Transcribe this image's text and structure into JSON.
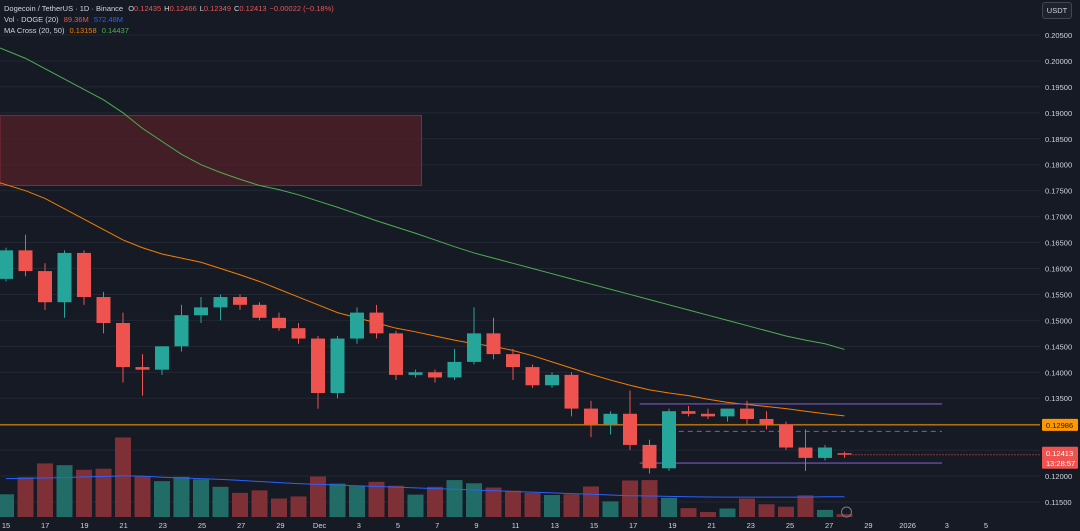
{
  "header": {
    "symbol_line": "Dogecoin / TetherUS · 1D · Binance",
    "ohlc": [
      {
        "k": "O",
        "v": "0.12435"
      },
      {
        "k": "H",
        "v": "0.12466"
      },
      {
        "k": "L",
        "v": "0.12349"
      },
      {
        "k": "C",
        "v": "0.12413"
      },
      {
        "k": "",
        "v": "−0.00022 (−0.18%)"
      }
    ],
    "volume_label": "Vol · DOGE (20)",
    "volume_value": "89.36M",
    "volume_ma_value": "572.48M",
    "volume_right": "Vol89.36M −0.00022 (−0.18%)",
    "ma_label": "MA Cross (20, 50)",
    "ma20_value": "0.13158",
    "ma50_value": "0.14437"
  },
  "quote_currency": "USDT",
  "colors": {
    "background": "#161a25",
    "up": "#26a69a",
    "down": "#ef5350",
    "ma20": "#f57c00",
    "ma50": "#4caf50",
    "volume_ma": "#2962ff",
    "horizontal_level": "#ff9800",
    "range_lines": "#7e57c2",
    "zone_fill": "#4a1f28",
    "text": "#d1d4dc",
    "price_tag_bg": "#ef5350"
  },
  "chart_data": {
    "type": "candlestick",
    "title": "Dogecoin / TetherUS · 1D · Binance",
    "ylim": [
      0.11,
      0.21
    ],
    "y_ticks": [
      "0.11500",
      "0.12000",
      "0.12500",
      "0.13000",
      "0.13500",
      "0.14000",
      "0.14500",
      "0.15000",
      "0.15500",
      "0.16000",
      "0.16500",
      "0.17000",
      "0.17500",
      "0.18000",
      "0.18500",
      "0.19000",
      "0.19500",
      "0.20000",
      "0.20500"
    ],
    "x_ticks": [
      "15",
      "17",
      "19",
      "21",
      "23",
      "25",
      "27",
      "29",
      "Dec",
      "3",
      "5",
      "7",
      "9",
      "11",
      "13",
      "15",
      "17",
      "19",
      "21",
      "23",
      "25",
      "27",
      "29",
      "2026",
      "3",
      "5"
    ],
    "candles": [
      {
        "o": 0.158,
        "h": 0.164,
        "l": 0.1575,
        "c": 0.1635
      },
      {
        "o": 0.1635,
        "h": 0.1665,
        "l": 0.1585,
        "c": 0.1595
      },
      {
        "o": 0.1595,
        "h": 0.161,
        "l": 0.152,
        "c": 0.1535
      },
      {
        "o": 0.1535,
        "h": 0.1635,
        "l": 0.1505,
        "c": 0.163
      },
      {
        "o": 0.163,
        "h": 0.1635,
        "l": 0.153,
        "c": 0.1545
      },
      {
        "o": 0.1545,
        "h": 0.1555,
        "l": 0.1475,
        "c": 0.1495
      },
      {
        "o": 0.1495,
        "h": 0.1515,
        "l": 0.138,
        "c": 0.141
      },
      {
        "o": 0.141,
        "h": 0.1435,
        "l": 0.1355,
        "c": 0.1405
      },
      {
        "o": 0.1405,
        "h": 0.145,
        "l": 0.1395,
        "c": 0.145
      },
      {
        "o": 0.145,
        "h": 0.153,
        "l": 0.144,
        "c": 0.151
      },
      {
        "o": 0.151,
        "h": 0.1545,
        "l": 0.1495,
        "c": 0.1525
      },
      {
        "o": 0.1525,
        "h": 0.155,
        "l": 0.15,
        "c": 0.1545
      },
      {
        "o": 0.1545,
        "h": 0.155,
        "l": 0.152,
        "c": 0.153
      },
      {
        "o": 0.153,
        "h": 0.1535,
        "l": 0.15,
        "c": 0.1505
      },
      {
        "o": 0.1505,
        "h": 0.1515,
        "l": 0.148,
        "c": 0.1485
      },
      {
        "o": 0.1485,
        "h": 0.1495,
        "l": 0.1455,
        "c": 0.1465
      },
      {
        "o": 0.1465,
        "h": 0.147,
        "l": 0.133,
        "c": 0.136
      },
      {
        "o": 0.136,
        "h": 0.147,
        "l": 0.135,
        "c": 0.1465
      },
      {
        "o": 0.1465,
        "h": 0.1525,
        "l": 0.1455,
        "c": 0.1515
      },
      {
        "o": 0.1515,
        "h": 0.153,
        "l": 0.1465,
        "c": 0.1475
      },
      {
        "o": 0.1475,
        "h": 0.148,
        "l": 0.1385,
        "c": 0.1395
      },
      {
        "o": 0.1395,
        "h": 0.1405,
        "l": 0.139,
        "c": 0.14
      },
      {
        "o": 0.14,
        "h": 0.1405,
        "l": 0.138,
        "c": 0.139
      },
      {
        "o": 0.139,
        "h": 0.1445,
        "l": 0.1385,
        "c": 0.142
      },
      {
        "o": 0.142,
        "h": 0.1525,
        "l": 0.1415,
        "c": 0.1475
      },
      {
        "o": 0.1475,
        "h": 0.1505,
        "l": 0.1425,
        "c": 0.1435
      },
      {
        "o": 0.1435,
        "h": 0.1445,
        "l": 0.1385,
        "c": 0.141
      },
      {
        "o": 0.141,
        "h": 0.1415,
        "l": 0.137,
        "c": 0.1375
      },
      {
        "o": 0.1375,
        "h": 0.14,
        "l": 0.137,
        "c": 0.1395
      },
      {
        "o": 0.1395,
        "h": 0.14,
        "l": 0.1315,
        "c": 0.133
      },
      {
        "o": 0.133,
        "h": 0.1345,
        "l": 0.1275,
        "c": 0.13
      },
      {
        "o": 0.13,
        "h": 0.1325,
        "l": 0.128,
        "c": 0.132
      },
      {
        "o": 0.132,
        "h": 0.1365,
        "l": 0.125,
        "c": 0.126
      },
      {
        "o": 0.126,
        "h": 0.127,
        "l": 0.1205,
        "c": 0.1215
      },
      {
        "o": 0.1215,
        "h": 0.133,
        "l": 0.121,
        "c": 0.1325
      },
      {
        "o": 0.1325,
        "h": 0.1335,
        "l": 0.1315,
        "c": 0.132
      },
      {
        "o": 0.132,
        "h": 0.133,
        "l": 0.131,
        "c": 0.1315
      },
      {
        "o": 0.1315,
        "h": 0.133,
        "l": 0.1305,
        "c": 0.133
      },
      {
        "o": 0.133,
        "h": 0.1345,
        "l": 0.13,
        "c": 0.131
      },
      {
        "o": 0.131,
        "h": 0.1325,
        "l": 0.129,
        "c": 0.13
      },
      {
        "o": 0.13,
        "h": 0.1305,
        "l": 0.125,
        "c": 0.1255
      },
      {
        "o": 0.1255,
        "h": 0.129,
        "l": 0.121,
        "c": 0.1235
      },
      {
        "o": 0.1235,
        "h": 0.126,
        "l": 0.123,
        "c": 0.1255
      },
      {
        "o": 0.1244,
        "h": 0.1247,
        "l": 0.1235,
        "c": 0.1241
      }
    ],
    "volume": {
      "ylim": [
        0,
        2000
      ],
      "values": [
        640,
        1120,
        1510,
        1460,
        1330,
        1360,
        2240,
        1150,
        1010,
        1130,
        1060,
        850,
        680,
        750,
        520,
        580,
        1140,
        940,
        870,
        990,
        880,
        630,
        850,
        1040,
        950,
        830,
        740,
        680,
        620,
        640,
        860,
        440,
        1030,
        1040,
        540,
        250,
        140,
        240,
        520,
        360,
        290,
        610,
        200,
        80
      ],
      "ma": [
        1080,
        1090,
        1100,
        1110,
        1130,
        1140,
        1160,
        1150,
        1120,
        1100,
        1080,
        1060,
        1030,
        1000,
        970,
        940,
        920,
        900,
        880,
        860,
        840,
        820,
        800,
        780,
        760,
        740,
        720,
        700,
        680,
        660,
        640,
        620,
        600,
        590,
        580,
        570,
        565,
        560,
        560,
        560,
        560,
        560,
        570,
        572
      ]
    },
    "ma20": [
      0.1765,
      0.175,
      0.1735,
      0.1715,
      0.1695,
      0.1675,
      0.1655,
      0.164,
      0.1628,
      0.162,
      0.1612,
      0.16,
      0.1588,
      0.1575,
      0.156,
      0.1545,
      0.153,
      0.1515,
      0.1505,
      0.1495,
      0.1485,
      0.1478,
      0.147,
      0.1462,
      0.1455,
      0.145,
      0.1442,
      0.1432,
      0.142,
      0.1408,
      0.1396,
      0.1385,
      0.1375,
      0.1366,
      0.136,
      0.1355,
      0.1348,
      0.1342,
      0.1338,
      0.1334,
      0.133,
      0.1325,
      0.132,
      0.1316
    ],
    "ma50": [
      0.2025,
      0.2005,
      0.1985,
      0.1965,
      0.1945,
      0.1925,
      0.19,
      0.187,
      0.1845,
      0.182,
      0.18,
      0.1785,
      0.1772,
      0.176,
      0.1752,
      0.1742,
      0.173,
      0.1718,
      0.1705,
      0.1692,
      0.168,
      0.1668,
      0.1655,
      0.1642,
      0.163,
      0.162,
      0.161,
      0.16,
      0.159,
      0.158,
      0.157,
      0.156,
      0.155,
      0.154,
      0.153,
      0.152,
      0.151,
      0.15,
      0.149,
      0.148,
      0.147,
      0.1462,
      0.1455,
      0.1444
    ],
    "zone": {
      "x_from": 0,
      "x_to": 21.0,
      "y_top": 0.1895,
      "y_bottom": 0.176
    },
    "horizontal_level": {
      "value": 0.12986,
      "label": "0.12986"
    },
    "range": {
      "x_from": 32.5,
      "x_to": 48.0,
      "upper": 0.1339,
      "mid": 0.1286,
      "lower": 0.1225
    },
    "last_price": {
      "label": "0.12413",
      "countdown": "13:28:57"
    }
  }
}
